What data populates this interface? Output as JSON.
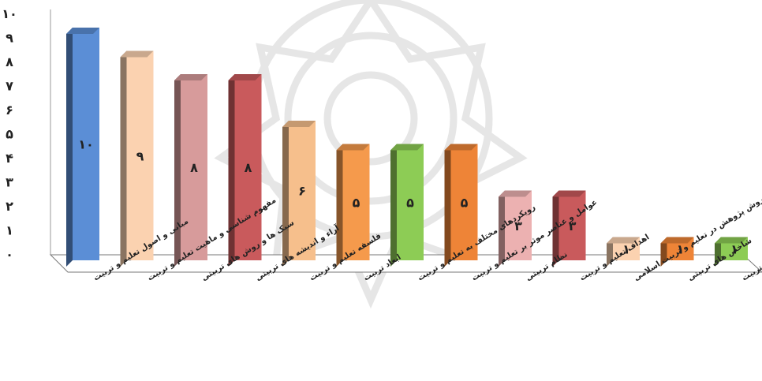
{
  "chart_data": {
    "type": "bar",
    "categories": [
      "مبانی و اصول تعلیم و تربیت",
      "مفهوم شناسی و ماهیت تعلیم و تربیت",
      "سبک ها و روش های تربیتی",
      "آراء و اندیشه های تربیتی",
      "فلسفه تعلیم و تربیت",
      "ابعاد تربیت",
      "رویکردهای مختلف به تعلیم و تربیت",
      "عوامل و عناصر موثر بر تعلیم و تربیت",
      "نظام تربیتی",
      "اهداف تعلیم و تربیت",
      "روش پژوهش در تعلیم و تربیت اسلامی",
      "شاخص های تربیتی",
      "مطالعات تطبیقی در تعلیم و تربیت"
    ],
    "values": [
      10,
      9,
      8,
      8,
      6,
      5,
      5,
      5,
      3,
      3,
      1,
      1,
      1
    ],
    "value_labels": [
      "۱۰",
      "۹",
      "۸",
      "۸",
      "۶",
      "۵",
      "۵",
      "۵",
      "۳",
      "۳",
      "۱",
      "۱",
      "۱"
    ],
    "colors": [
      "#5b8ed6",
      "#fbd2b0",
      "#d79b9b",
      "#c95a5c",
      "#f6bf8c",
      "#f59a4c",
      "#8dcc55",
      "#ee8437",
      "#ecb1b1",
      "#c95a5c",
      "#fbd2b0",
      "#ee8437",
      "#8dcc55"
    ],
    "y_ticks": [
      "۰",
      "۱",
      "۲",
      "۳",
      "۴",
      "۵",
      "۶",
      "۷",
      "۸",
      "۹",
      "۱۰"
    ],
    "ylim": [
      0,
      10
    ],
    "grid": false,
    "title": "",
    "xlabel": "",
    "ylabel": ""
  }
}
